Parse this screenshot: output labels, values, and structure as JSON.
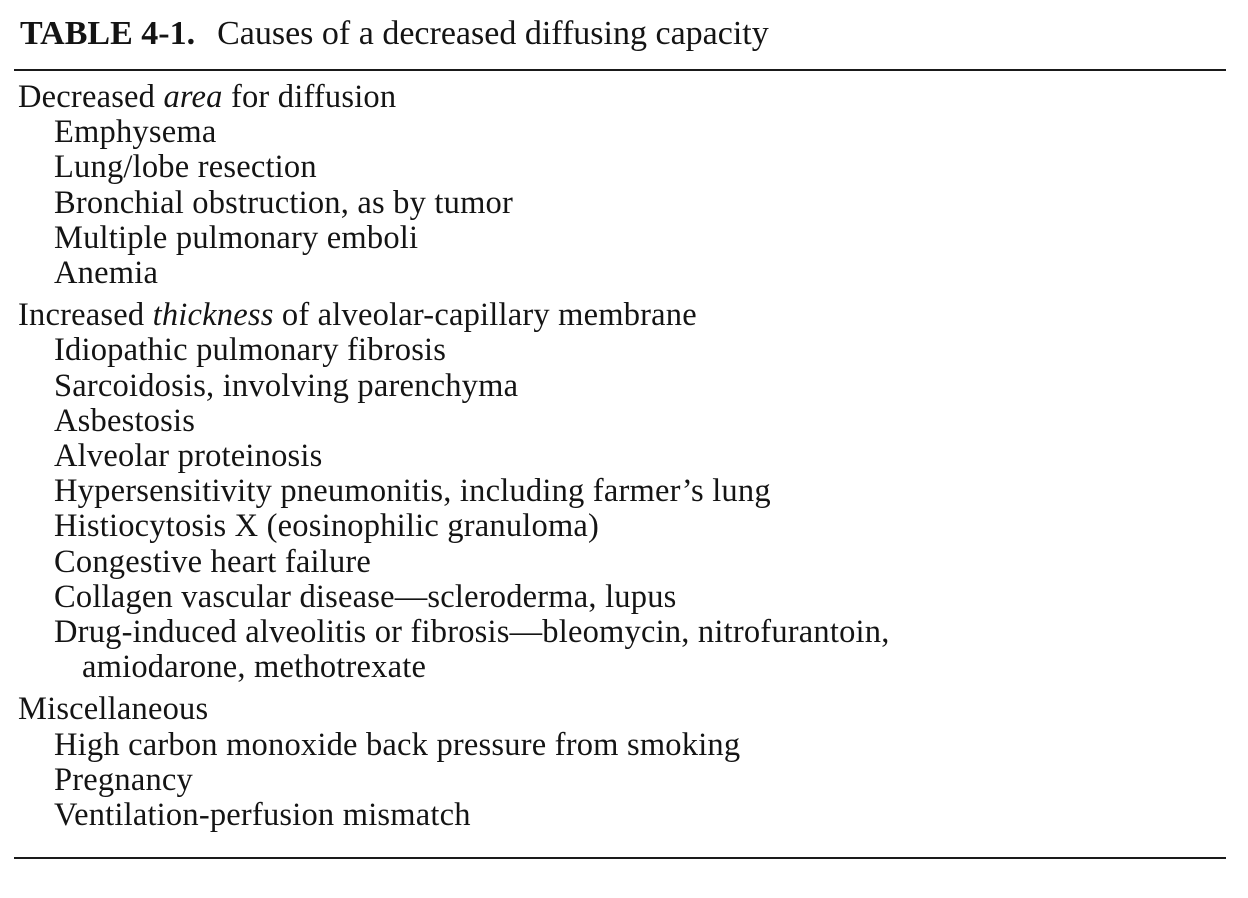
{
  "table": {
    "label": "TABLE 4-1.",
    "title": "Causes of a decreased diffusing capacity"
  },
  "sections": [
    {
      "heading_pre": "Decreased ",
      "heading_em": "area",
      "heading_post": " for diffusion",
      "items": [
        "Emphysema",
        "Lung/lobe resection",
        "Bronchial obstruction, as by tumor",
        "Multiple pulmonary emboli",
        "Anemia"
      ]
    },
    {
      "heading_pre": "Increased ",
      "heading_em": "thickness",
      "heading_post": " of alveolar-capillary membrane",
      "items": [
        "Idiopathic pulmonary fibrosis",
        "Sarcoidosis, involving parenchyma",
        "Asbestosis",
        "Alveolar proteinosis",
        "Hypersensitivity pneumonitis, including farmer’s lung",
        "Histiocytosis X (eosinophilic granuloma)",
        "Congestive heart failure",
        "Collagen vascular disease—scleroderma, lupus",
        "Drug-induced alveolitis or fibrosis—bleomycin, nitrofurantoin,"
      ],
      "continuation": "amiodarone, methotrexate"
    },
    {
      "heading_pre": "Miscellaneous",
      "heading_em": "",
      "heading_post": "",
      "items": [
        "High carbon monoxide back pressure from smoking",
        "Pregnancy",
        "Ventilation-perfusion mismatch"
      ]
    }
  ]
}
